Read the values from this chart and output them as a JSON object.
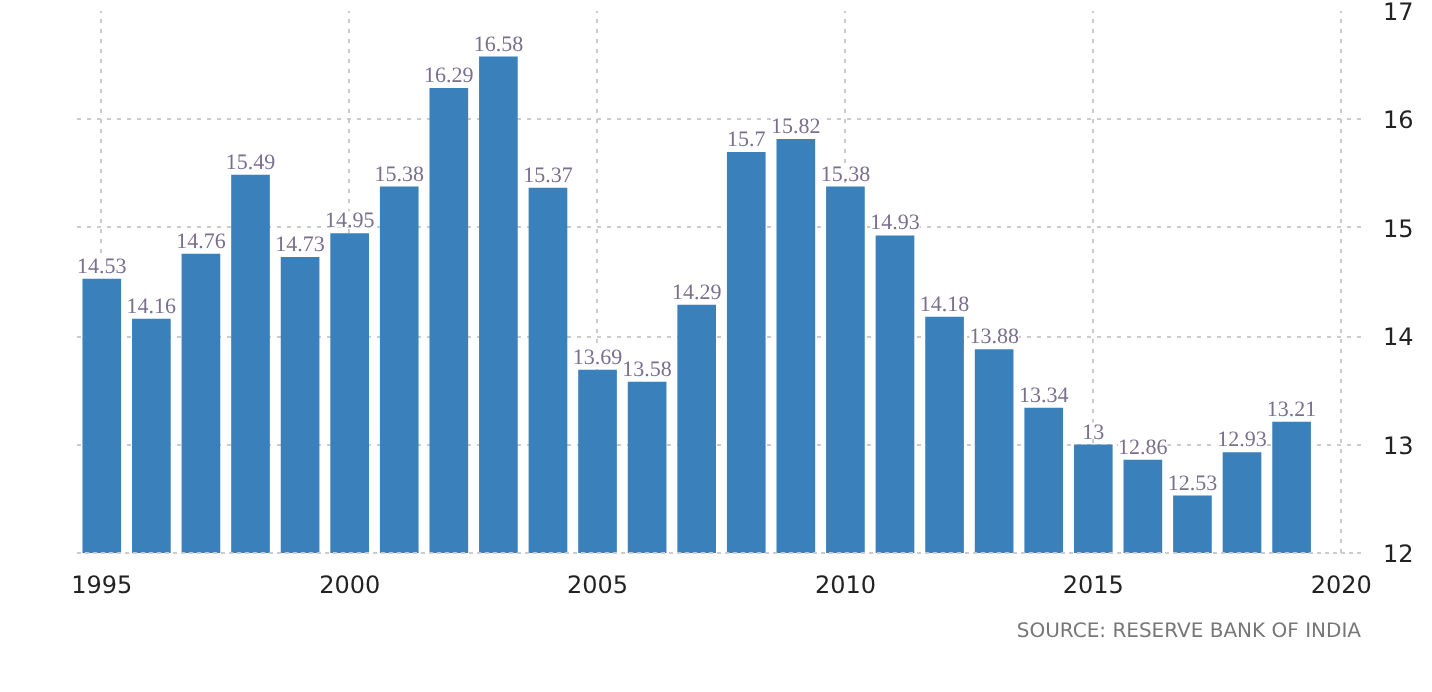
{
  "chart_data": {
    "type": "bar",
    "x": [
      1995,
      1996,
      1997,
      1998,
      1999,
      2000,
      2001,
      2002,
      2003,
      2004,
      2005,
      2006,
      2007,
      2008,
      2009,
      2010,
      2011,
      2012,
      2013,
      2014,
      2015,
      2016,
      2017,
      2018,
      2019
    ],
    "values": [
      14.53,
      14.16,
      14.76,
      15.49,
      14.73,
      14.95,
      15.38,
      16.29,
      16.58,
      15.37,
      13.69,
      13.58,
      14.29,
      15.7,
      15.82,
      15.38,
      14.93,
      14.18,
      13.88,
      13.34,
      13,
      12.86,
      12.53,
      12.93,
      13.21
    ],
    "color": "#3a80bb",
    "data_labels": true,
    "xlim": [
      1994.5,
      2020.4
    ],
    "xticks": [
      1995,
      2000,
      2005,
      2010,
      2015,
      2020
    ],
    "ylim": [
      12,
      17
    ],
    "yticks": [
      12,
      13,
      14,
      15,
      16,
      17
    ],
    "grid": true,
    "annotations": [
      "SOURCE: RESERVE BANK OF INDIA"
    ]
  }
}
